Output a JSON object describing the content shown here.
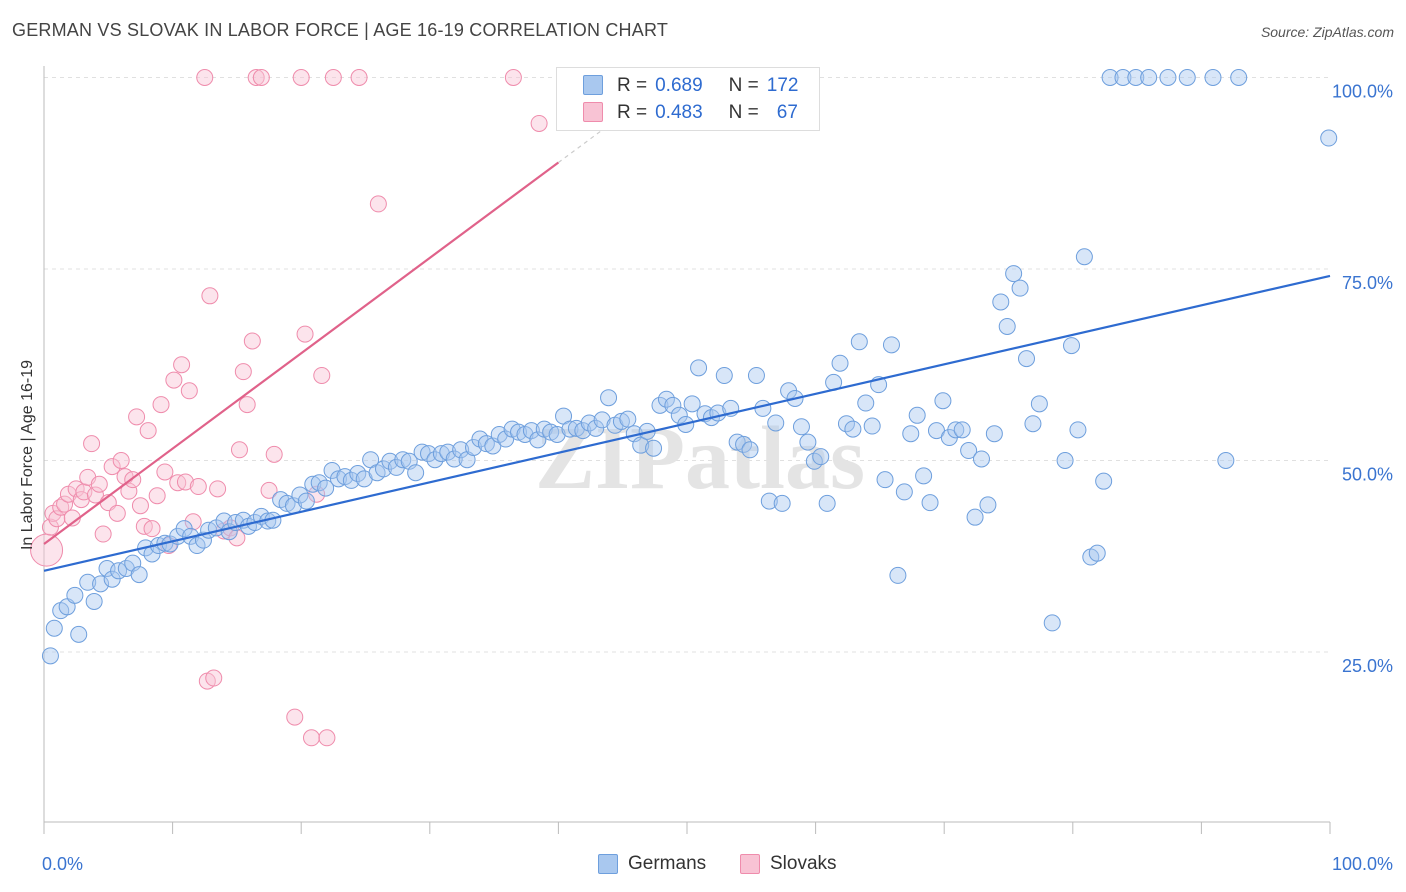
{
  "header": {
    "title": "GERMAN VS SLOVAK IN LABOR FORCE | AGE 16-19 CORRELATION CHART",
    "source": "Source: ZipAtlas.com"
  },
  "watermark": "ZIPatlas",
  "legend_top": {
    "rows": [
      {
        "r_label": "R =",
        "r_value": "0.689",
        "n_label": "N =",
        "n_value": "172"
      },
      {
        "r_label": "R =",
        "r_value": "0.483",
        "n_label": "N =",
        "n_value": "67"
      }
    ]
  },
  "legend_bottom": {
    "germans": "Germans",
    "slovaks": "Slovaks"
  },
  "colors": {
    "germans_fill": "#a9c8ef",
    "germans_stroke": "#6e9fdd",
    "germans_line": "#2e6bd0",
    "slovaks_fill": "#f8c3d4",
    "slovaks_stroke": "#ef8cac",
    "slovaks_line": "#e0628a",
    "tick_label": "#3a74d0",
    "grid": "#e0e0e0"
  },
  "chart_data": {
    "type": "scatter",
    "title": "GERMAN VS SLOVAK IN LABOR FORCE | AGE 16-19 CORRELATION CHART",
    "xlabel": "",
    "ylabel": "In Labor Force | Age 16-19",
    "xlim": [
      0,
      100
    ],
    "ylim": [
      0,
      102
    ],
    "x_tick_labels": [
      "0.0%",
      "100.0%"
    ],
    "y_ticks": [
      25,
      50,
      75,
      100
    ],
    "y_tick_labels": [
      "25.0%",
      "50.0%",
      "75.0%",
      "100.0%"
    ],
    "grid": true,
    "legend": "bottom",
    "series": [
      {
        "name": "Germans",
        "r": 0.689,
        "n": 172,
        "trend": {
          "x": [
            0,
            100
          ],
          "y": [
            35.6,
            74.1
          ]
        },
        "points": [
          [
            0.5,
            24.5
          ],
          [
            0.8,
            28.1
          ],
          [
            1.3,
            30.4
          ],
          [
            1.8,
            30.9
          ],
          [
            2.4,
            32.4
          ],
          [
            2.7,
            27.3
          ],
          [
            3.4,
            34.1
          ],
          [
            3.9,
            31.6
          ],
          [
            4.4,
            33.9
          ],
          [
            4.9,
            35.9
          ],
          [
            5.3,
            34.5
          ],
          [
            5.8,
            35.6
          ],
          [
            6.4,
            35.9
          ],
          [
            6.9,
            36.6
          ],
          [
            7.4,
            35.1
          ],
          [
            7.9,
            38.6
          ],
          [
            8.4,
            37.8
          ],
          [
            8.9,
            38.9
          ],
          [
            9.4,
            39.2
          ],
          [
            9.8,
            39.1
          ],
          [
            10.4,
            40.1
          ],
          [
            10.9,
            41.1
          ],
          [
            11.4,
            40.1
          ],
          [
            11.9,
            38.9
          ],
          [
            12.4,
            39.6
          ],
          [
            12.8,
            40.9
          ],
          [
            13.4,
            41.2
          ],
          [
            14.0,
            42.1
          ],
          [
            14.4,
            40.7
          ],
          [
            14.9,
            41.9
          ],
          [
            15.5,
            42.2
          ],
          [
            15.9,
            41.4
          ],
          [
            16.4,
            41.9
          ],
          [
            16.9,
            42.7
          ],
          [
            17.4,
            42.1
          ],
          [
            17.8,
            42.2
          ],
          [
            18.4,
            44.9
          ],
          [
            18.9,
            44.4
          ],
          [
            19.4,
            44.1
          ],
          [
            19.9,
            45.5
          ],
          [
            20.4,
            44.7
          ],
          [
            20.9,
            46.9
          ],
          [
            21.4,
            47.1
          ],
          [
            21.9,
            46.4
          ],
          [
            22.4,
            48.7
          ],
          [
            22.9,
            47.6
          ],
          [
            23.4,
            47.9
          ],
          [
            23.9,
            47.4
          ],
          [
            24.4,
            48.3
          ],
          [
            24.9,
            47.6
          ],
          [
            25.4,
            50.1
          ],
          [
            25.9,
            48.4
          ],
          [
            26.4,
            48.9
          ],
          [
            26.9,
            49.9
          ],
          [
            27.4,
            49.1
          ],
          [
            27.9,
            50.1
          ],
          [
            28.4,
            49.9
          ],
          [
            28.9,
            48.4
          ],
          [
            29.4,
            51.1
          ],
          [
            29.9,
            50.9
          ],
          [
            30.4,
            50.1
          ],
          [
            30.9,
            50.9
          ],
          [
            31.4,
            51.1
          ],
          [
            31.9,
            50.2
          ],
          [
            32.4,
            51.4
          ],
          [
            32.9,
            50.1
          ],
          [
            33.4,
            51.7
          ],
          [
            33.9,
            52.8
          ],
          [
            34.4,
            52.2
          ],
          [
            34.9,
            51.9
          ],
          [
            35.4,
            53.4
          ],
          [
            35.9,
            52.8
          ],
          [
            36.4,
            54.1
          ],
          [
            36.9,
            53.7
          ],
          [
            37.4,
            53.4
          ],
          [
            37.9,
            53.9
          ],
          [
            38.4,
            52.7
          ],
          [
            38.9,
            54.1
          ],
          [
            39.4,
            53.7
          ],
          [
            39.9,
            53.4
          ],
          [
            40.4,
            55.8
          ],
          [
            40.9,
            54.1
          ],
          [
            41.4,
            54.2
          ],
          [
            41.9,
            53.9
          ],
          [
            42.4,
            54.9
          ],
          [
            42.9,
            54.2
          ],
          [
            43.4,
            55.3
          ],
          [
            43.9,
            58.2
          ],
          [
            44.4,
            54.6
          ],
          [
            44.9,
            55.1
          ],
          [
            45.4,
            55.4
          ],
          [
            45.9,
            53.5
          ],
          [
            46.4,
            52.0
          ],
          [
            46.9,
            53.8
          ],
          [
            47.4,
            51.6
          ],
          [
            47.9,
            57.2
          ],
          [
            48.4,
            58.0
          ],
          [
            48.9,
            57.2
          ],
          [
            49.4,
            55.9
          ],
          [
            49.9,
            54.7
          ],
          [
            50.4,
            57.4
          ],
          [
            50.9,
            62.1
          ],
          [
            51.4,
            56.1
          ],
          [
            51.9,
            55.6
          ],
          [
            52.4,
            56.2
          ],
          [
            52.9,
            61.1
          ],
          [
            53.4,
            56.8
          ],
          [
            53.9,
            52.4
          ],
          [
            54.4,
            52.1
          ],
          [
            54.9,
            51.4
          ],
          [
            55.4,
            61.1
          ],
          [
            55.9,
            56.8
          ],
          [
            56.4,
            44.7
          ],
          [
            56.9,
            54.9
          ],
          [
            57.4,
            44.4
          ],
          [
            57.9,
            59.1
          ],
          [
            58.4,
            58.1
          ],
          [
            58.9,
            54.4
          ],
          [
            59.4,
            52.4
          ],
          [
            59.9,
            49.9
          ],
          [
            60.4,
            50.5
          ],
          [
            60.9,
            44.4
          ],
          [
            61.4,
            60.2
          ],
          [
            61.9,
            62.7
          ],
          [
            62.4,
            54.8
          ],
          [
            62.9,
            54.1
          ],
          [
            63.4,
            65.5
          ],
          [
            63.9,
            57.5
          ],
          [
            64.4,
            54.5
          ],
          [
            64.9,
            59.9
          ],
          [
            65.4,
            47.5
          ],
          [
            65.9,
            65.1
          ],
          [
            66.4,
            35.0
          ],
          [
            66.9,
            45.9
          ],
          [
            67.4,
            53.5
          ],
          [
            67.9,
            55.9
          ],
          [
            68.4,
            48.0
          ],
          [
            68.9,
            44.5
          ],
          [
            69.4,
            53.9
          ],
          [
            69.9,
            57.8
          ],
          [
            70.4,
            53.0
          ],
          [
            70.9,
            54.0
          ],
          [
            71.4,
            54.0
          ],
          [
            71.9,
            51.3
          ],
          [
            72.4,
            42.6
          ],
          [
            72.9,
            50.2
          ],
          [
            73.4,
            44.2
          ],
          [
            73.9,
            53.5
          ],
          [
            74.4,
            70.7
          ],
          [
            74.9,
            67.5
          ],
          [
            75.4,
            74.4
          ],
          [
            75.9,
            72.5
          ],
          [
            76.4,
            63.3
          ],
          [
            76.9,
            54.8
          ],
          [
            77.4,
            57.4
          ],
          [
            78.4,
            28.8
          ],
          [
            79.4,
            50.0
          ],
          [
            79.9,
            65.0
          ],
          [
            80.4,
            54.0
          ],
          [
            80.9,
            76.6
          ],
          [
            81.4,
            37.4
          ],
          [
            81.9,
            37.9
          ],
          [
            82.4,
            47.3
          ],
          [
            82.9,
            100.0
          ],
          [
            83.9,
            100.0
          ],
          [
            84.9,
            100.0
          ],
          [
            85.9,
            100.0
          ],
          [
            87.4,
            100.0
          ],
          [
            88.9,
            100.0
          ],
          [
            90.9,
            100.0
          ],
          [
            91.9,
            50.0
          ],
          [
            92.9,
            100.0
          ],
          [
            99.9,
            92.1
          ]
        ]
      },
      {
        "name": "Slovaks",
        "r": 0.483,
        "n": 67,
        "trend": {
          "x": [
            0,
            40
          ],
          "y": [
            39.1,
            88.9
          ]
        },
        "points": [
          [
            0.2,
            38.3
          ],
          [
            0.5,
            41.3
          ],
          [
            0.7,
            43.1
          ],
          [
            1.0,
            42.4
          ],
          [
            1.3,
            43.9
          ],
          [
            1.6,
            44.3
          ],
          [
            1.9,
            45.6
          ],
          [
            2.2,
            42.5
          ],
          [
            2.5,
            46.3
          ],
          [
            2.9,
            44.9
          ],
          [
            3.1,
            45.9
          ],
          [
            3.4,
            47.8
          ],
          [
            3.7,
            52.2
          ],
          [
            4.0,
            45.5
          ],
          [
            4.3,
            46.9
          ],
          [
            4.6,
            40.4
          ],
          [
            5.0,
            44.5
          ],
          [
            5.3,
            49.2
          ],
          [
            5.7,
            43.1
          ],
          [
            6.0,
            50.0
          ],
          [
            6.3,
            47.9
          ],
          [
            6.6,
            46.0
          ],
          [
            6.9,
            47.5
          ],
          [
            7.2,
            55.7
          ],
          [
            7.5,
            44.1
          ],
          [
            7.8,
            41.4
          ],
          [
            8.1,
            53.9
          ],
          [
            8.4,
            41.1
          ],
          [
            8.8,
            45.4
          ],
          [
            9.1,
            57.3
          ],
          [
            9.4,
            48.5
          ],
          [
            9.7,
            38.9
          ],
          [
            10.1,
            60.5
          ],
          [
            10.4,
            47.1
          ],
          [
            10.7,
            62.5
          ],
          [
            11.0,
            47.2
          ],
          [
            11.3,
            59.1
          ],
          [
            11.6,
            42.0
          ],
          [
            12.0,
            46.6
          ],
          [
            12.5,
            100.0
          ],
          [
            12.7,
            21.2
          ],
          [
            12.9,
            71.5
          ],
          [
            13.2,
            21.6
          ],
          [
            13.5,
            46.3
          ],
          [
            14.0,
            40.8
          ],
          [
            14.5,
            41.2
          ],
          [
            15.0,
            39.9
          ],
          [
            15.2,
            51.4
          ],
          [
            15.5,
            61.6
          ],
          [
            15.8,
            57.3
          ],
          [
            16.2,
            65.6
          ],
          [
            16.5,
            100.0
          ],
          [
            16.9,
            100.0
          ],
          [
            17.5,
            46.1
          ],
          [
            17.9,
            50.8
          ],
          [
            19.5,
            16.5
          ],
          [
            20.0,
            100.0
          ],
          [
            20.3,
            66.5
          ],
          [
            20.8,
            13.8
          ],
          [
            21.2,
            45.6
          ],
          [
            21.6,
            61.1
          ],
          [
            22.0,
            13.8
          ],
          [
            22.5,
            100.0
          ],
          [
            24.5,
            100.0
          ],
          [
            26.0,
            83.5
          ],
          [
            36.5,
            100.0
          ],
          [
            38.5,
            94.0
          ]
        ]
      }
    ]
  }
}
